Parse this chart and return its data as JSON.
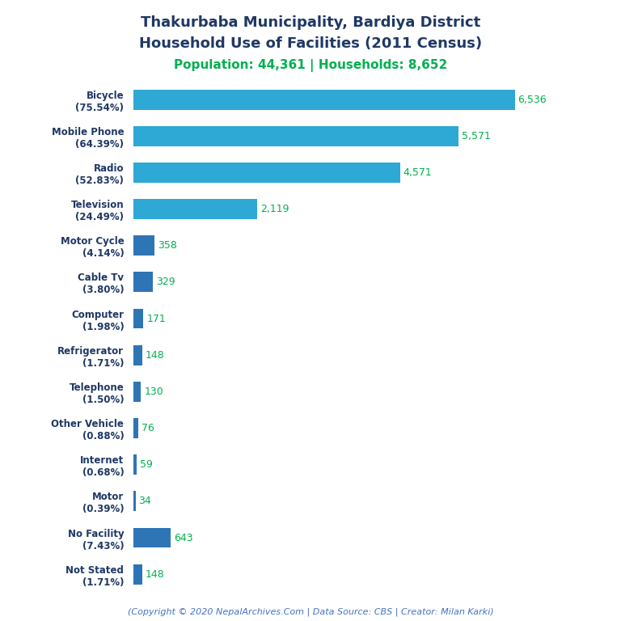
{
  "title_line1": "Thakurbaba Municipality, Bardiya District",
  "title_line2": "Household Use of Facilities (2011 Census)",
  "subtitle": "Population: 44,361 | Households: 8,652",
  "footer": "(Copyright © 2020 NepalArchives.Com | Data Source: CBS | Creator: Milan Karki)",
  "categories": [
    "Bicycle\n(75.54%)",
    "Mobile Phone\n(64.39%)",
    "Radio\n(52.83%)",
    "Television\n(24.49%)",
    "Motor Cycle\n(4.14%)",
    "Cable Tv\n(3.80%)",
    "Computer\n(1.98%)",
    "Refrigerator\n(1.71%)",
    "Telephone\n(1.50%)",
    "Other Vehicle\n(0.88%)",
    "Internet\n(0.68%)",
    "Motor\n(0.39%)",
    "No Facility\n(7.43%)",
    "Not Stated\n(1.71%)"
  ],
  "values": [
    6536,
    5571,
    4571,
    2119,
    358,
    329,
    171,
    148,
    130,
    76,
    59,
    34,
    643,
    148
  ],
  "value_labels": [
    "6,536",
    "5,571",
    "4,571",
    "2,119",
    "358",
    "329",
    "171",
    "148",
    "130",
    "76",
    "59",
    "34",
    "643",
    "148"
  ],
  "bar_color_small": "#2e75b6",
  "bar_color_large": "#2ea8d4",
  "title_color": "#1f3864",
  "subtitle_color": "#00b050",
  "value_label_color": "#00b050",
  "footer_color": "#4472c4",
  "ylabel_color": "#1f3864",
  "background_color": "#ffffff",
  "figsize": [
    7.68,
    7.68
  ],
  "dpi": 100
}
